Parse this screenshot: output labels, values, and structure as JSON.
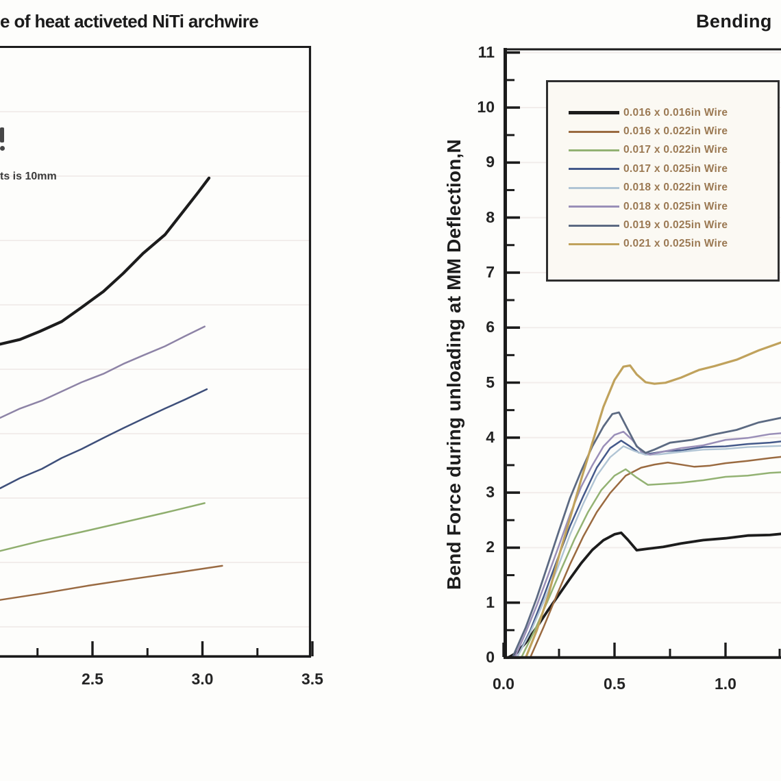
{
  "left_chart": {
    "title": "e of heat activeted NiTi archwire",
    "annotation": "ts is 10mm",
    "x_tick_labels": [
      "2.5",
      "3.0",
      "3.5"
    ]
  },
  "right_chart": {
    "title": "Bending",
    "ylabel": "Bend Force during unloading at MM Deflection,N",
    "x_tick_labels": [
      "0.0",
      "0.5",
      "1.0"
    ],
    "y_tick_labels": [
      "0",
      "1",
      "2",
      "3",
      "4",
      "5",
      "6",
      "7",
      "8",
      "9",
      "10",
      "11"
    ],
    "legend": [
      {
        "label": "0.016 x 0.016in Wire",
        "color": "#1c1c1c",
        "thick": true
      },
      {
        "label": "0.016 x 0.022in Wire",
        "color": "#9a6a40"
      },
      {
        "label": "0.017 x 0.022in Wire",
        "color": "#93b273"
      },
      {
        "label": "0.017 x 0.025in Wire",
        "color": "#44598a"
      },
      {
        "label": "0.018 x 0.022in Wire",
        "color": "#b0c4d4"
      },
      {
        "label": "0.018 x 0.025in Wire",
        "color": "#9a8fb8"
      },
      {
        "label": "0.019 x 0.025in Wire",
        "color": "#5c6a82"
      },
      {
        "label": "0.021 x 0.025in Wire",
        "color": "#c0a25c"
      }
    ]
  },
  "chart_data": [
    {
      "id": "left",
      "type": "line",
      "title": "e of heat activeted NiTi archwire",
      "annotation": "ts is 10mm",
      "xlabel": "",
      "ylabel": "",
      "x_ticks": [
        2.5,
        3.0,
        3.5
      ],
      "x_minor_ticks": [
        2.25,
        2.75,
        3.25
      ],
      "xlim_visible": [
        2.08,
        3.5
      ],
      "grid": "horizontal-faint",
      "note_layout": "chart cropped at left and top-left; y-axis and legend not visible; y values estimated on same N scale as right chart",
      "series": [
        {
          "name": "black-curve",
          "color": "#1c1c1c",
          "width": 4.2,
          "points": [
            [
              2.08,
              5.7
            ],
            [
              2.17,
              5.79
            ],
            [
              2.26,
              5.92
            ],
            [
              2.36,
              6.12
            ],
            [
              2.45,
              6.36
            ],
            [
              2.55,
              6.66
            ],
            [
              2.64,
              6.99
            ],
            [
              2.73,
              7.34
            ],
            [
              2.83,
              7.7
            ],
            [
              2.92,
              8.14
            ],
            [
              2.98,
              8.45
            ],
            [
              3.03,
              8.72
            ]
          ]
        },
        {
          "name": "purple-curve",
          "color": "#8d83a6",
          "width": 2.5,
          "points": [
            [
              2.08,
              4.36
            ],
            [
              2.17,
              4.52
            ],
            [
              2.27,
              4.68
            ],
            [
              2.36,
              4.84
            ],
            [
              2.45,
              5.0
            ],
            [
              2.55,
              5.17
            ],
            [
              2.64,
              5.33
            ],
            [
              2.73,
              5.5
            ],
            [
              2.83,
              5.66
            ],
            [
              2.92,
              5.84
            ],
            [
              3.01,
              6.02
            ]
          ]
        },
        {
          "name": "navy-curve",
          "color": "#3e4f7a",
          "width": 2.5,
          "points": [
            [
              2.08,
              3.08
            ],
            [
              2.17,
              3.26
            ],
            [
              2.27,
              3.44
            ],
            [
              2.36,
              3.62
            ],
            [
              2.45,
              3.8
            ],
            [
              2.55,
              3.99
            ],
            [
              2.64,
              4.17
            ],
            [
              2.73,
              4.35
            ],
            [
              2.83,
              4.52
            ],
            [
              2.92,
              4.7
            ],
            [
              3.02,
              4.88
            ]
          ]
        },
        {
          "name": "green-curve",
          "color": "#8fae6e",
          "width": 2.5,
          "points": [
            [
              2.08,
              1.94
            ],
            [
              2.27,
              2.12
            ],
            [
              2.45,
              2.29
            ],
            [
              2.64,
              2.47
            ],
            [
              2.83,
              2.64
            ],
            [
              3.01,
              2.81
            ]
          ]
        },
        {
          "name": "brown-curve",
          "color": "#996a42",
          "width": 2.5,
          "points": [
            [
              2.08,
              1.05
            ],
            [
              2.28,
              1.17
            ],
            [
              2.48,
              1.3
            ],
            [
              2.68,
              1.42
            ],
            [
              2.88,
              1.54
            ],
            [
              3.09,
              1.67
            ]
          ]
        }
      ]
    },
    {
      "id": "right",
      "type": "line",
      "title": "Bending",
      "xlabel": "",
      "ylabel": "Bend Force during unloading at MM Deflection,N",
      "x_ticks": [
        0.0,
        0.5,
        1.0
      ],
      "x_minor_ticks": [
        0.25,
        0.75,
        1.25
      ],
      "y_ticks": [
        0,
        1,
        2,
        3,
        4,
        5,
        6,
        7,
        8,
        9,
        10,
        11
      ],
      "ylim": [
        0,
        11
      ],
      "xlim_visible": [
        0,
        1.25
      ],
      "grid": "horizontal-faint",
      "legend_position": "upper-left-inside",
      "series": [
        {
          "name": "0.016 x 0.016in Wire",
          "color": "#1c1c1c",
          "width": 3.8,
          "points": [
            [
              0.02,
              0
            ],
            [
              0.06,
              0.1
            ],
            [
              0.1,
              0.28
            ],
            [
              0.15,
              0.55
            ],
            [
              0.2,
              0.85
            ],
            [
              0.25,
              1.15
            ],
            [
              0.3,
              1.45
            ],
            [
              0.35,
              1.72
            ],
            [
              0.4,
              1.95
            ],
            [
              0.45,
              2.13
            ],
            [
              0.5,
              2.25
            ],
            [
              0.53,
              2.28
            ],
            [
              0.56,
              2.15
            ],
            [
              0.6,
              1.95
            ],
            [
              0.65,
              1.97
            ],
            [
              0.72,
              2.02
            ],
            [
              0.8,
              2.08
            ],
            [
              0.9,
              2.13
            ],
            [
              1.0,
              2.18
            ],
            [
              1.1,
              2.21
            ],
            [
              1.2,
              2.24
            ],
            [
              1.25,
              2.25
            ]
          ]
        },
        {
          "name": "0.016 x 0.022in Wire",
          "color": "#9a6a40",
          "width": 2.5,
          "points": [
            [
              0.12,
              0
            ],
            [
              0.18,
              0.55
            ],
            [
              0.24,
              1.15
            ],
            [
              0.3,
              1.7
            ],
            [
              0.36,
              2.2
            ],
            [
              0.42,
              2.65
            ],
            [
              0.48,
              3.0
            ],
            [
              0.55,
              3.3
            ],
            [
              0.62,
              3.45
            ],
            [
              0.68,
              3.52
            ],
            [
              0.74,
              3.55
            ],
            [
              0.8,
              3.5
            ],
            [
              0.86,
              3.47
            ],
            [
              0.93,
              3.5
            ],
            [
              1.0,
              3.53
            ],
            [
              1.1,
              3.58
            ],
            [
              1.2,
              3.63
            ],
            [
              1.25,
              3.65
            ]
          ]
        },
        {
          "name": "0.017 x 0.022in Wire",
          "color": "#93b273",
          "width": 2.5,
          "points": [
            [
              0.08,
              0
            ],
            [
              0.14,
              0.5
            ],
            [
              0.2,
              1.05
            ],
            [
              0.26,
              1.6
            ],
            [
              0.32,
              2.15
            ],
            [
              0.38,
              2.65
            ],
            [
              0.44,
              3.05
            ],
            [
              0.5,
              3.3
            ],
            [
              0.55,
              3.42
            ],
            [
              0.6,
              3.28
            ],
            [
              0.65,
              3.15
            ],
            [
              0.72,
              3.15
            ],
            [
              0.8,
              3.18
            ],
            [
              0.9,
              3.23
            ],
            [
              1.0,
              3.28
            ],
            [
              1.1,
              3.32
            ],
            [
              1.2,
              3.35
            ],
            [
              1.25,
              3.37
            ]
          ]
        },
        {
          "name": "0.017 x 0.025in Wire",
          "color": "#44598a",
          "width": 2.5,
          "points": [
            [
              0.06,
              0
            ],
            [
              0.12,
              0.5
            ],
            [
              0.18,
              1.1
            ],
            [
              0.24,
              1.75
            ],
            [
              0.3,
              2.4
            ],
            [
              0.36,
              2.95
            ],
            [
              0.42,
              3.45
            ],
            [
              0.48,
              3.8
            ],
            [
              0.53,
              3.95
            ],
            [
              0.57,
              3.85
            ],
            [
              0.61,
              3.73
            ],
            [
              0.66,
              3.7
            ],
            [
              0.73,
              3.75
            ],
            [
              0.8,
              3.78
            ],
            [
              0.9,
              3.82
            ],
            [
              1.0,
              3.85
            ],
            [
              1.1,
              3.88
            ],
            [
              1.2,
              3.91
            ],
            [
              1.25,
              3.93
            ]
          ]
        },
        {
          "name": "0.018 x 0.022in Wire",
          "color": "#b0c4d4",
          "width": 2.4,
          "points": [
            [
              0.06,
              0
            ],
            [
              0.12,
              0.45
            ],
            [
              0.18,
              1.0
            ],
            [
              0.24,
              1.6
            ],
            [
              0.3,
              2.25
            ],
            [
              0.36,
              2.8
            ],
            [
              0.42,
              3.3
            ],
            [
              0.48,
              3.65
            ],
            [
              0.54,
              3.85
            ],
            [
              0.59,
              3.75
            ],
            [
              0.64,
              3.68
            ],
            [
              0.7,
              3.7
            ],
            [
              0.8,
              3.74
            ],
            [
              0.9,
              3.78
            ],
            [
              1.0,
              3.8
            ],
            [
              1.1,
              3.82
            ],
            [
              1.25,
              3.85
            ]
          ]
        },
        {
          "name": "0.018 x 0.025in Wire",
          "color": "#9a8fb8",
          "width": 2.5,
          "points": [
            [
              0.05,
              0
            ],
            [
              0.1,
              0.45
            ],
            [
              0.15,
              0.95
            ],
            [
              0.2,
              1.5
            ],
            [
              0.25,
              2.05
            ],
            [
              0.3,
              2.6
            ],
            [
              0.35,
              3.1
            ],
            [
              0.4,
              3.5
            ],
            [
              0.45,
              3.85
            ],
            [
              0.5,
              4.05
            ],
            [
              0.54,
              4.1
            ],
            [
              0.58,
              3.95
            ],
            [
              0.62,
              3.75
            ],
            [
              0.66,
              3.7
            ],
            [
              0.72,
              3.75
            ],
            [
              0.8,
              3.8
            ],
            [
              0.9,
              3.87
            ],
            [
              1.0,
              3.95
            ],
            [
              1.1,
              4.0
            ],
            [
              1.2,
              4.06
            ],
            [
              1.25,
              4.08
            ]
          ]
        },
        {
          "name": "0.019 x 0.025in Wire",
          "color": "#5c6a82",
          "width": 2.8,
          "points": [
            [
              0.04,
              0
            ],
            [
              0.1,
              0.55
            ],
            [
              0.15,
              1.1
            ],
            [
              0.2,
              1.7
            ],
            [
              0.25,
              2.3
            ],
            [
              0.3,
              2.9
            ],
            [
              0.35,
              3.4
            ],
            [
              0.4,
              3.85
            ],
            [
              0.45,
              4.2
            ],
            [
              0.49,
              4.42
            ],
            [
              0.52,
              4.45
            ],
            [
              0.56,
              4.15
            ],
            [
              0.6,
              3.85
            ],
            [
              0.64,
              3.73
            ],
            [
              0.68,
              3.78
            ],
            [
              0.75,
              3.9
            ],
            [
              0.85,
              3.97
            ],
            [
              0.95,
              4.05
            ],
            [
              1.05,
              4.15
            ],
            [
              1.15,
              4.27
            ],
            [
              1.25,
              4.36
            ]
          ]
        },
        {
          "name": "0.021 x 0.025in Wire",
          "color": "#c0a25c",
          "width": 3.2,
          "points": [
            [
              0.1,
              0
            ],
            [
              0.15,
              0.5
            ],
            [
              0.2,
              1.1
            ],
            [
              0.25,
              1.85
            ],
            [
              0.3,
              2.55
            ],
            [
              0.35,
              3.25
            ],
            [
              0.4,
              3.9
            ],
            [
              0.45,
              4.55
            ],
            [
              0.5,
              5.05
            ],
            [
              0.54,
              5.3
            ],
            [
              0.57,
              5.32
            ],
            [
              0.6,
              5.15
            ],
            [
              0.64,
              5.0
            ],
            [
              0.68,
              4.97
            ],
            [
              0.73,
              5.0
            ],
            [
              0.8,
              5.1
            ],
            [
              0.88,
              5.22
            ],
            [
              0.95,
              5.3
            ],
            [
              1.05,
              5.42
            ],
            [
              1.15,
              5.58
            ],
            [
              1.25,
              5.73
            ]
          ]
        }
      ]
    }
  ]
}
